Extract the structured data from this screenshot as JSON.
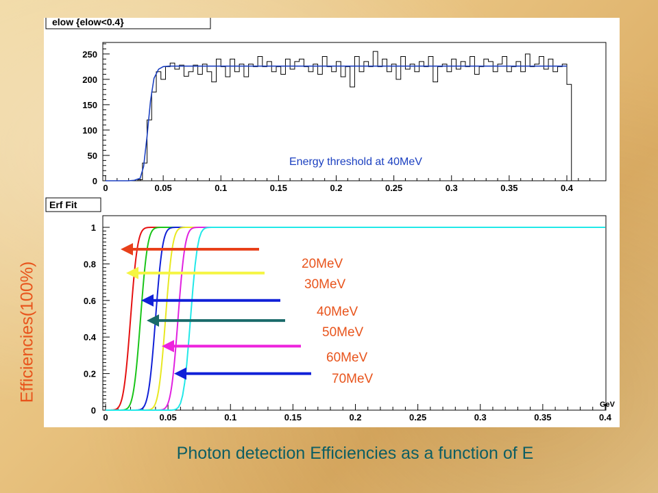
{
  "page": {
    "y_axis_label": "Efficiencies(100%)",
    "caption": "Photon detection Efficiencies as a function of E"
  },
  "chart_data": [
    {
      "type": "histogram",
      "title": "elow {elow<0.4}",
      "annotation": "Energy threshold at 40MeV",
      "xlim": [
        0,
        0.42
      ],
      "ylim": [
        0,
        270
      ],
      "x_ticks": [
        "0",
        "0.05",
        "0.1",
        "0.15",
        "0.2",
        "0.25",
        "0.3",
        "0.35",
        "0.4"
      ],
      "y_ticks": [
        "0",
        "50",
        "100",
        "150",
        "200",
        "250"
      ],
      "histogram": {
        "bin_width": 0.004,
        "x_start": 0,
        "values": [
          0,
          0,
          0,
          0,
          0,
          0,
          0,
          2,
          35,
          120,
          175,
          215,
          200,
          225,
          232,
          220,
          228,
          206,
          215,
          228,
          210,
          230,
          215,
          195,
          240,
          225,
          205,
          240,
          215,
          230,
          205,
          230,
          225,
          245,
          225,
          235,
          215,
          225,
          210,
          240,
          220,
          235,
          240,
          225,
          215,
          230,
          210,
          245,
          225,
          215,
          235,
          205,
          225,
          185,
          245,
          215,
          235,
          225,
          255,
          225,
          240,
          215,
          230,
          200,
          245,
          220,
          230,
          215,
          235,
          225,
          245,
          195,
          225,
          230,
          215,
          240,
          220,
          235,
          225,
          245,
          210,
          225,
          240,
          235,
          215,
          230,
          245,
          215,
          225,
          235,
          215,
          250,
          225,
          230,
          245,
          220,
          240,
          215,
          225,
          230,
          190
        ]
      },
      "fit": {
        "color": "#1a3fc0",
        "plateau": 226,
        "x_end": 0.4,
        "points": [
          [
            0,
            0
          ],
          [
            0.02,
            0
          ],
          [
            0.025,
            1
          ],
          [
            0.03,
            5
          ],
          [
            0.033,
            28
          ],
          [
            0.036,
            88
          ],
          [
            0.039,
            158
          ],
          [
            0.042,
            202
          ],
          [
            0.046,
            220
          ],
          [
            0.05,
            225
          ],
          [
            0.055,
            226
          ]
        ]
      }
    },
    {
      "type": "line",
      "title": "Erf Fit",
      "unit_label": "GeV",
      "xlim": [
        0,
        0.4
      ],
      "ylim": [
        0,
        1.02
      ],
      "x_ticks": [
        "0",
        "0.05",
        "0.1",
        "0.15",
        "0.2",
        "0.25",
        "0.3",
        "0.35",
        "0.4"
      ],
      "y_ticks": [
        "0",
        "0.2",
        "0.4",
        "0.6",
        "0.8",
        "1"
      ],
      "series": [
        {
          "name": "20MeV",
          "color": "#e51010",
          "label_color": "#e8541c",
          "mu": 0.02,
          "sigma": 0.0045,
          "x_end": 0.05,
          "arrow_color": "#e8401a",
          "arrow_y": 0.88
        },
        {
          "name": "30MeV",
          "color": "#18c418",
          "label_color": "#e8541c",
          "mu": 0.028,
          "sigma": 0.0045,
          "x_end": 0.06,
          "arrow_color": "#f5f542",
          "arrow_y": 0.75
        },
        {
          "name": "40MeV",
          "color": "#1020d8",
          "label_color": "#e8541c",
          "mu": 0.04,
          "sigma": 0.0045,
          "x_end": 0.07,
          "arrow_color": "#1020d8",
          "arrow_y": 0.6
        },
        {
          "name": "50MeV",
          "color": "#e8e820",
          "label_color": "#e8541c",
          "mu": 0.048,
          "sigma": 0.0045,
          "x_end": 0.075,
          "arrow_color": "#1a6a6a",
          "arrow_y": 0.49
        },
        {
          "name": "60MeV",
          "color": "#e020e0",
          "label_color": "#e8541c",
          "mu": 0.058,
          "sigma": 0.0045,
          "x_end": 0.085,
          "arrow_color": "#ee22dd",
          "arrow_y": 0.35
        },
        {
          "name": "70MeV",
          "color": "#20e8e8",
          "label_color": "#e8541c",
          "mu": 0.068,
          "sigma": 0.0045,
          "x_end": 0.4,
          "arrow_color": "#1020d8",
          "arrow_y": 0.2
        }
      ]
    }
  ]
}
